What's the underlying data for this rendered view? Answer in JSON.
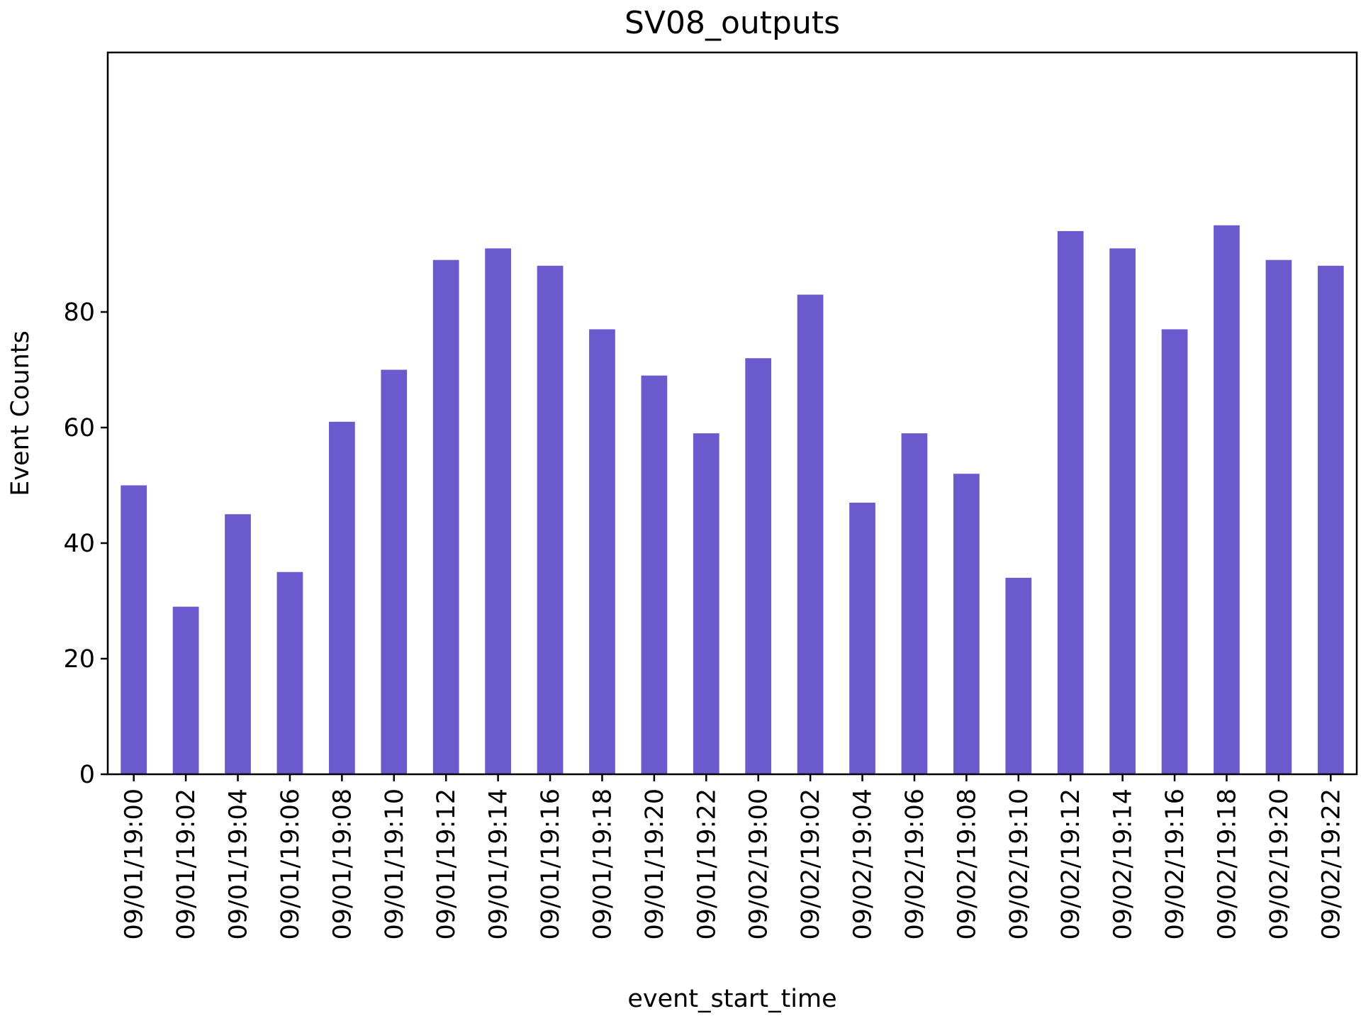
{
  "chart_data": {
    "type": "bar",
    "title": "SV08_outputs",
    "xlabel": "event_start_time",
    "ylabel": "Event Counts",
    "ylim": [
      0,
      100
    ],
    "yticks": [
      0,
      20,
      40,
      60,
      80
    ],
    "color": "#6a5acd",
    "grid": false,
    "categories": [
      "09/01/19:00",
      "09/01/19:02",
      "09/01/19:04",
      "09/01/19:06",
      "09/01/19:08",
      "09/01/19:10",
      "09/01/19:12",
      "09/01/19:14",
      "09/01/19:16",
      "09/01/19:18",
      "09/01/19:20",
      "09/01/19:22",
      "09/02/19:00",
      "09/02/19:02",
      "09/02/19:04",
      "09/02/19:06",
      "09/02/19:08",
      "09/02/19:10",
      "09/02/19:12",
      "09/02/19:14",
      "09/02/19:16",
      "09/02/19:18",
      "09/02/19:20",
      "09/02/19:22"
    ],
    "values": [
      50,
      29,
      45,
      35,
      61,
      70,
      89,
      91,
      88,
      77,
      69,
      59,
      72,
      83,
      47,
      59,
      52,
      34,
      94,
      91,
      77,
      95,
      89,
      88
    ]
  }
}
